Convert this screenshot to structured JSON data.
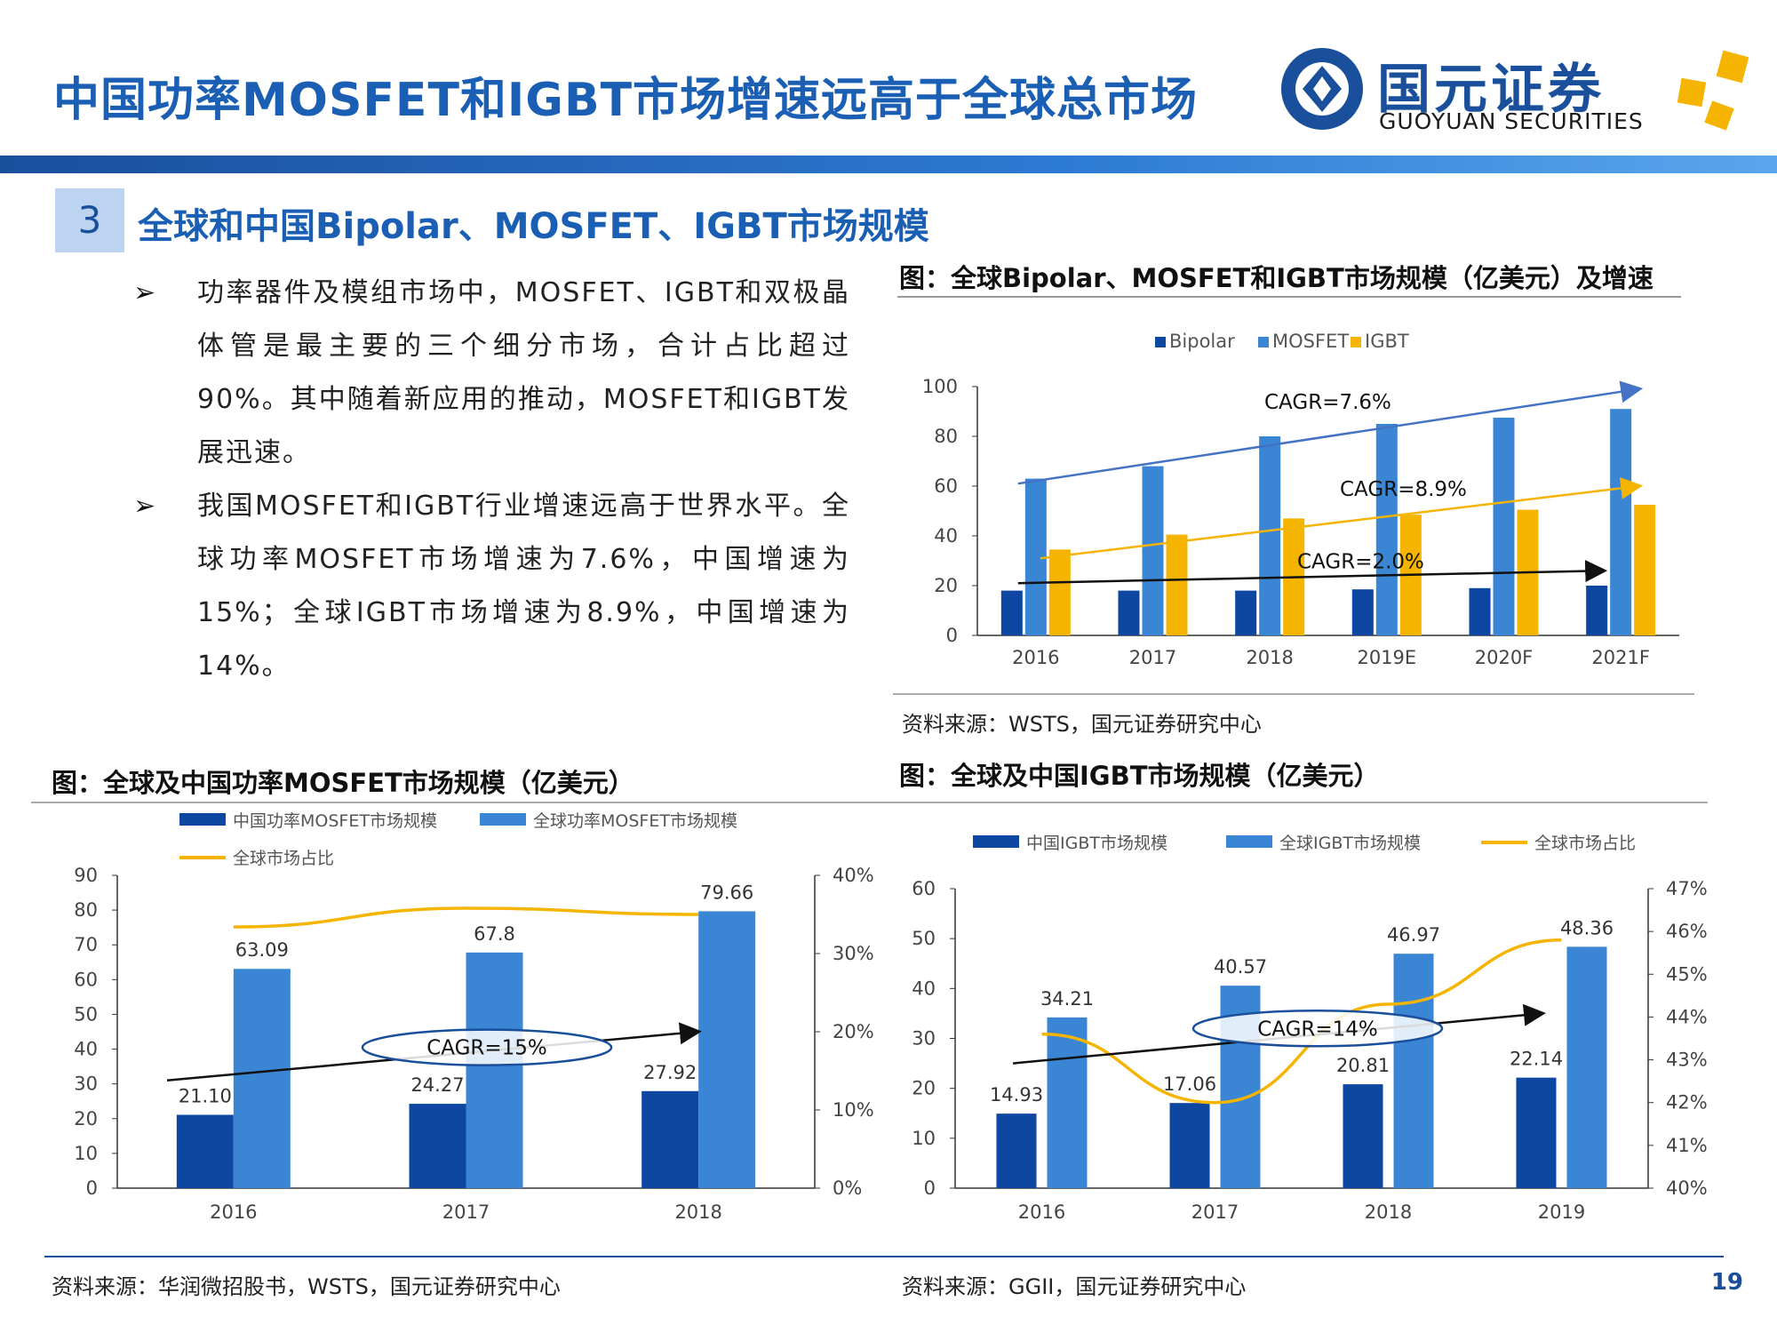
{
  "header": {
    "title": "中国功率MOSFET和IGBT市场增速远高于全球总市场",
    "logo_cn": "国元证券",
    "logo_en": "GUOYUAN SECURITIES"
  },
  "section": {
    "number": "3",
    "title": "全球和中国Bipolar、MOSFET、IGBT市场规模"
  },
  "bullets": [
    "功率器件及模组市场中，MOSFET、IGBT和双极晶体管是最主要的三个细分市场，合计占比超过90%。其中随着新应用的推动，MOSFET和IGBT发展迅速。",
    "我国MOSFET和IGBT行业增速远高于世界水平。全球功率MOSFET市场增速为7.6%，中国增速为15%；全球IGBT市场增速为8.9%，中国增速为14%。"
  ],
  "bullet_marker": "➢",
  "page_number": "19",
  "colors": {
    "dark_blue": "#0d47a1",
    "mid_blue": "#3a86d4",
    "yellow": "#f5b400",
    "brand": "#1a5fb4"
  },
  "chart_data": [
    {
      "id": "global_segments",
      "type": "bar",
      "title": "图：全球Bipolar、MOSFET和IGBT市场规模（亿美元）及增速",
      "source": "资料来源：WSTS，国元证券研究中心",
      "categories": [
        "2016",
        "2017",
        "2018",
        "2019E",
        "2020F",
        "2021F"
      ],
      "series": [
        {
          "name": "Bipolar",
          "color": "#0d47a1",
          "values": [
            18,
            18,
            18,
            18.5,
            19,
            20
          ]
        },
        {
          "name": "MOSFET",
          "color": "#3a86d4",
          "values": [
            63,
            68,
            80,
            85,
            87.5,
            91
          ]
        },
        {
          "name": "IGBT",
          "color": "#f5b400",
          "values": [
            34.5,
            40.5,
            47,
            48.5,
            50.5,
            52.5
          ]
        }
      ],
      "ylim": [
        0,
        100
      ],
      "yticks": [
        "0",
        "20",
        "40",
        "60",
        "80",
        "100"
      ],
      "legend": "top",
      "annotations": [
        {
          "text": "CAGR=7.6%",
          "color": "#4472c4"
        },
        {
          "text": "CAGR=8.9%",
          "color": "#f5b400"
        },
        {
          "text": "CAGR=2.0%",
          "color": "#111111"
        }
      ]
    },
    {
      "id": "mosfet_china_global",
      "type": "bar",
      "title": "图：全球及中国功率MOSFET市场规模（亿美元）",
      "source": "资料来源：华润微招股书，WSTS，国元证券研究中心",
      "categories": [
        "2016",
        "2017",
        "2018"
      ],
      "series": [
        {
          "name": "中国功率MOSFET市场规模",
          "color": "#0d47a1",
          "values": [
            21.1,
            24.27,
            27.92
          ],
          "labels": [
            "21.10",
            "24.27",
            "27.92"
          ]
        },
        {
          "name": "全球功率MOSFET市场规模",
          "color": "#3a86d4",
          "values": [
            63.09,
            67.8,
            79.66
          ],
          "labels": [
            "63.09",
            "67.8",
            "79.66"
          ]
        },
        {
          "name": "全球市场占比",
          "type": "line",
          "axis": "right",
          "color": "#f5b400",
          "values": [
            33.4,
            35.8,
            35.0
          ]
        }
      ],
      "ylim": [
        0,
        90
      ],
      "yticks": [
        "0",
        "10",
        "20",
        "30",
        "40",
        "50",
        "60",
        "70",
        "80",
        "90"
      ],
      "y2lim": [
        0,
        40
      ],
      "y2ticks": [
        "0%",
        "10%",
        "20%",
        "30%",
        "40%"
      ],
      "legend": "top",
      "annotation": "CAGR=15%"
    },
    {
      "id": "igbt_china_global",
      "type": "bar",
      "title": "图：全球及中国IGBT市场规模（亿美元）",
      "source": "资料来源：GGII，国元证券研究中心",
      "categories": [
        "2016",
        "2017",
        "2018",
        "2019"
      ],
      "series": [
        {
          "name": "中国IGBT市场规模",
          "color": "#0d47a1",
          "values": [
            14.93,
            17.06,
            20.81,
            22.14
          ],
          "labels": [
            "14.93",
            "17.06",
            "20.81",
            "22.14"
          ]
        },
        {
          "name": "全球IGBT市场规模",
          "color": "#3a86d4",
          "values": [
            34.21,
            40.57,
            46.97,
            48.36
          ],
          "labels": [
            "34.21",
            "40.57",
            "46.97",
            "48.36"
          ]
        },
        {
          "name": "全球市场占比",
          "type": "line",
          "axis": "right",
          "color": "#f5b400",
          "values": [
            43.6,
            42.0,
            44.3,
            45.8
          ]
        }
      ],
      "ylim": [
        0,
        60
      ],
      "yticks": [
        "0",
        "10",
        "20",
        "30",
        "40",
        "50",
        "60"
      ],
      "y2lim": [
        40,
        47
      ],
      "y2ticks": [
        "40%",
        "41%",
        "42%",
        "43%",
        "44%",
        "45%",
        "46%",
        "47%"
      ],
      "legend": "top",
      "annotation": "CAGR=14%"
    }
  ]
}
